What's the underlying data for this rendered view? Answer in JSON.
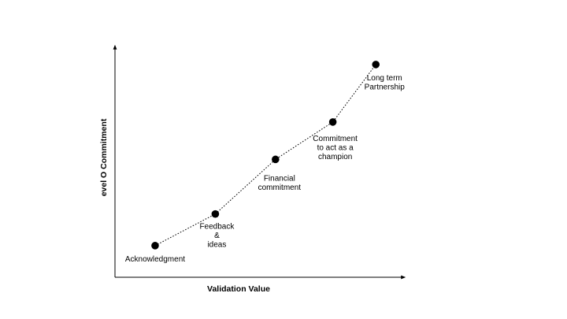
{
  "chart_data": {
    "type": "line",
    "title": "",
    "xlabel": "Validation Value",
    "ylabel": "evel  O Commitment",
    "grid": false,
    "legend": "none",
    "line_style": "dotted",
    "marker": "filled-circle",
    "color": "#000000",
    "points": [
      {
        "label": "Acknowledgment",
        "x": 1.4,
        "y": 1.1
      },
      {
        "label": "Feedback\n&\nideas",
        "x": 3.5,
        "y": 2.2
      },
      {
        "label": "Financial\ncommitment",
        "x": 5.6,
        "y": 4.1
      },
      {
        "label": "Commitment\nto act as a\nchampion",
        "x": 7.6,
        "y": 5.4
      },
      {
        "label": "Long term\nPartnership",
        "x": 9.1,
        "y": 7.4
      }
    ],
    "xlim": [
      0,
      10
    ],
    "ylim": [
      0,
      8
    ]
  }
}
